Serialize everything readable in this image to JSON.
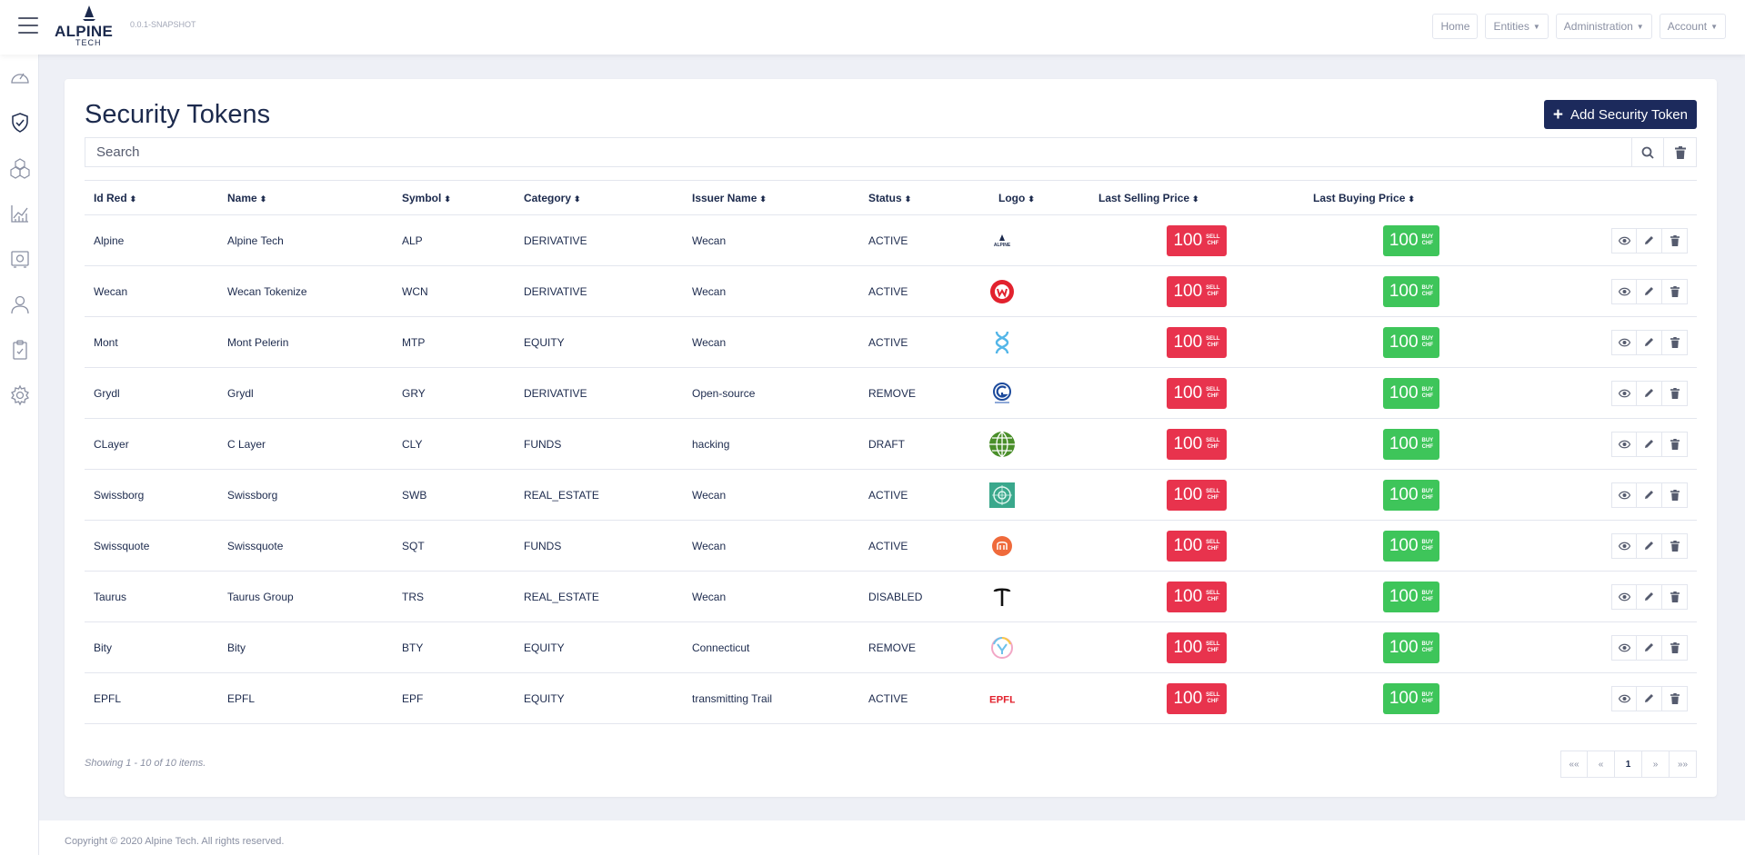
{
  "header": {
    "brand_name": "ALPINE",
    "brand_sub": "TECH",
    "version": "0.0.1-SNAPSHOT",
    "nav": [
      {
        "label": "Home",
        "dropdown": false
      },
      {
        "label": "Entities",
        "dropdown": true
      },
      {
        "label": "Administration",
        "dropdown": true
      },
      {
        "label": "Account",
        "dropdown": true
      }
    ]
  },
  "sidebar": {
    "items": [
      "dashboard-icon",
      "shield-check-icon",
      "cubes-icon",
      "chart-line-icon",
      "vault-icon",
      "user-icon",
      "clipboard-check-icon",
      "gear-icon"
    ]
  },
  "page": {
    "title": "Security Tokens",
    "add_button_label": "Add Security Token",
    "search_placeholder": "Search"
  },
  "table": {
    "columns": [
      {
        "label": "Id Red",
        "sortable": true
      },
      {
        "label": "Name",
        "sortable": true
      },
      {
        "label": "Symbol",
        "sortable": true
      },
      {
        "label": "Category",
        "sortable": true
      },
      {
        "label": "Issuer Name",
        "sortable": true
      },
      {
        "label": "Status",
        "sortable": true
      },
      {
        "label": "Logo",
        "sortable": true
      },
      {
        "label": "Last Selling Price",
        "sortable": true
      },
      {
        "label": "Last Buying Price",
        "sortable": true
      },
      {
        "label": "",
        "sortable": false
      }
    ],
    "price_sell_label": "SELL",
    "price_buy_label": "BUY",
    "price_currency": "CHF",
    "rows": [
      {
        "id_red": "Alpine",
        "name": "Alpine Tech",
        "symbol": "ALP",
        "category": "DERIVATIVE",
        "issuer": "Wecan",
        "status": "ACTIVE",
        "logo": "alpine",
        "sell": "100",
        "buy": "100"
      },
      {
        "id_red": "Wecan",
        "name": "Wecan Tokenize",
        "symbol": "WCN",
        "category": "DERIVATIVE",
        "issuer": "Wecan",
        "status": "ACTIVE",
        "logo": "wecan",
        "sell": "100",
        "buy": "100"
      },
      {
        "id_red": "Mont",
        "name": "Mont Pelerin",
        "symbol": "MTP",
        "category": "EQUITY",
        "issuer": "Wecan",
        "status": "ACTIVE",
        "logo": "mont",
        "sell": "100",
        "buy": "100"
      },
      {
        "id_red": "Grydl",
        "name": "Grydl",
        "symbol": "GRY",
        "category": "DERIVATIVE",
        "issuer": "Open-source",
        "status": "REMOVE",
        "logo": "grydl",
        "sell": "100",
        "buy": "100"
      },
      {
        "id_red": "CLayer",
        "name": "C Layer",
        "symbol": "CLY",
        "category": "FUNDS",
        "issuer": "hacking",
        "status": "DRAFT",
        "logo": "clayer",
        "sell": "100",
        "buy": "100"
      },
      {
        "id_red": "Swissborg",
        "name": "Swissborg",
        "symbol": "SWB",
        "category": "REAL_ESTATE",
        "issuer": "Wecan",
        "status": "ACTIVE",
        "logo": "swissborg",
        "sell": "100",
        "buy": "100"
      },
      {
        "id_red": "Swissquote",
        "name": "Swissquote",
        "symbol": "SQT",
        "category": "FUNDS",
        "issuer": "Wecan",
        "status": "ACTIVE",
        "logo": "swissquote",
        "sell": "100",
        "buy": "100"
      },
      {
        "id_red": "Taurus",
        "name": "Taurus Group",
        "symbol": "TRS",
        "category": "REAL_ESTATE",
        "issuer": "Wecan",
        "status": "DISABLED",
        "logo": "taurus",
        "sell": "100",
        "buy": "100"
      },
      {
        "id_red": "Bity",
        "name": "Bity",
        "symbol": "BTY",
        "category": "EQUITY",
        "issuer": "Connecticut",
        "status": "REMOVE",
        "logo": "bity",
        "sell": "100",
        "buy": "100"
      },
      {
        "id_red": "EPFL",
        "name": "EPFL",
        "symbol": "EPF",
        "category": "EQUITY",
        "issuer": "transmitting Trail",
        "status": "ACTIVE",
        "logo": "epfl",
        "sell": "100",
        "buy": "100"
      }
    ]
  },
  "pagination": {
    "summary": "Showing 1 - 10 of 10 items.",
    "buttons": [
      "««",
      "«",
      "1",
      "»",
      "»»"
    ],
    "current": "1"
  },
  "footer": {
    "copyright": "Copyright © 2020 Alpine Tech. All rights reserved."
  },
  "colors": {
    "brand": "#1c2a5c",
    "sell": "#e8334d",
    "buy": "#3ec55a"
  }
}
